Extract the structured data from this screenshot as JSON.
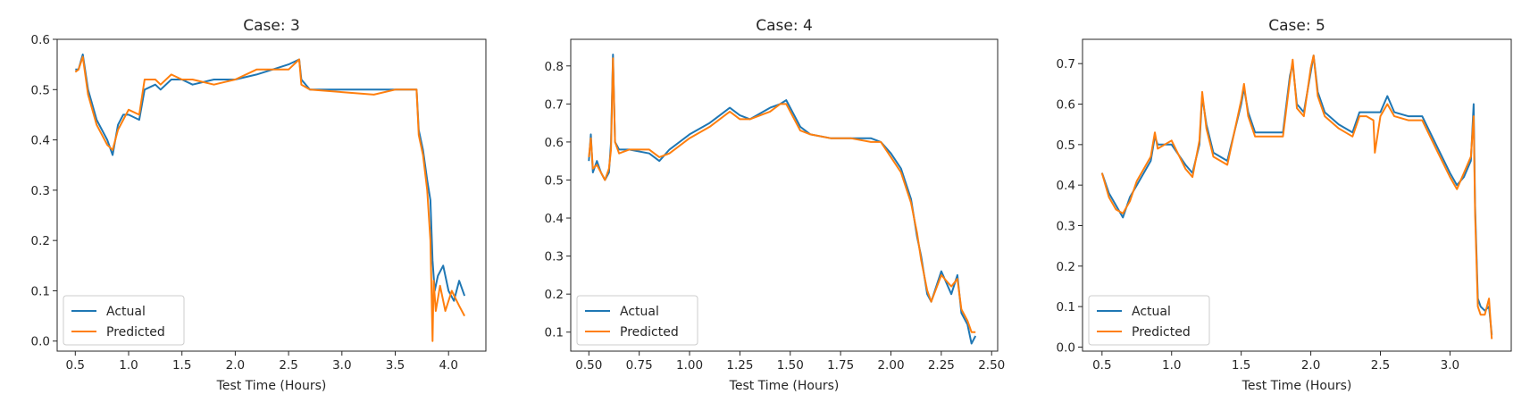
{
  "colors": {
    "actual": "#1f77b4",
    "predicted": "#ff7f0e",
    "axis": "#262626"
  },
  "chart_data": [
    {
      "type": "line",
      "title": "Case: 3",
      "xlabel": "Test Time (Hours)",
      "ylabel": "",
      "xlim": [
        0.33,
        4.35
      ],
      "ylim": [
        -0.02,
        0.6
      ],
      "xticks": [
        0.5,
        1.0,
        1.5,
        2.0,
        2.5,
        3.0,
        3.5,
        4.0
      ],
      "xtick_labels": [
        "0.5",
        "1.0",
        "1.5",
        "2.0",
        "2.5",
        "3.0",
        "3.5",
        "4.0"
      ],
      "yticks": [
        0.0,
        0.1,
        0.2,
        0.3,
        0.4,
        0.5,
        0.6
      ],
      "ytick_labels": [
        "0.0",
        "0.1",
        "0.2",
        "0.3",
        "0.4",
        "0.5",
        "0.6"
      ],
      "legend": {
        "position": "lower-left",
        "entries": [
          "Actual",
          "Predicted"
        ]
      },
      "grid": false,
      "series": [
        {
          "name": "Actual",
          "x": [
            0.5,
            0.53,
            0.57,
            0.62,
            0.7,
            0.8,
            0.85,
            0.9,
            0.95,
            1.0,
            1.1,
            1.15,
            1.25,
            1.3,
            1.4,
            1.5,
            1.6,
            1.8,
            2.0,
            2.2,
            2.35,
            2.5,
            2.6,
            2.62,
            2.7,
            3.0,
            3.5,
            3.7,
            3.72,
            3.76,
            3.8,
            3.83,
            3.85,
            3.87,
            3.9,
            3.95,
            4.0,
            4.05,
            4.1,
            4.15
          ],
          "y": [
            0.54,
            0.54,
            0.57,
            0.5,
            0.44,
            0.4,
            0.37,
            0.43,
            0.45,
            0.45,
            0.44,
            0.5,
            0.51,
            0.5,
            0.52,
            0.52,
            0.51,
            0.52,
            0.52,
            0.53,
            0.54,
            0.55,
            0.56,
            0.52,
            0.5,
            0.5,
            0.5,
            0.5,
            0.42,
            0.38,
            0.32,
            0.28,
            0.16,
            0.1,
            0.13,
            0.15,
            0.1,
            0.08,
            0.12,
            0.09
          ]
        },
        {
          "name": "Predicted",
          "x": [
            0.5,
            0.53,
            0.57,
            0.62,
            0.7,
            0.8,
            0.85,
            0.9,
            0.95,
            1.0,
            1.1,
            1.15,
            1.25,
            1.3,
            1.4,
            1.5,
            1.6,
            1.8,
            2.0,
            2.2,
            2.35,
            2.5,
            2.6,
            2.62,
            2.7,
            3.0,
            3.3,
            3.5,
            3.7,
            3.72,
            3.76,
            3.8,
            3.83,
            3.85,
            3.86,
            3.88,
            3.92,
            3.97,
            4.03,
            4.1,
            4.15
          ],
          "y": [
            0.535,
            0.54,
            0.565,
            0.49,
            0.43,
            0.39,
            0.38,
            0.42,
            0.44,
            0.46,
            0.45,
            0.52,
            0.52,
            0.51,
            0.53,
            0.52,
            0.52,
            0.51,
            0.52,
            0.54,
            0.54,
            0.54,
            0.56,
            0.51,
            0.5,
            0.495,
            0.49,
            0.5,
            0.5,
            0.41,
            0.37,
            0.3,
            0.2,
            0.0,
            0.12,
            0.06,
            0.11,
            0.06,
            0.1,
            0.07,
            0.05
          ]
        }
      ]
    },
    {
      "type": "line",
      "title": "Case: 4",
      "xlabel": "Test Time (Hours)",
      "ylabel": "",
      "xlim": [
        0.41,
        2.53
      ],
      "ylim": [
        0.05,
        0.87
      ],
      "xticks": [
        0.5,
        0.75,
        1.0,
        1.25,
        1.5,
        1.75,
        2.0,
        2.25,
        2.5
      ],
      "xtick_labels": [
        "0.50",
        "0.75",
        "1.00",
        "1.25",
        "1.50",
        "1.75",
        "2.00",
        "2.25",
        "2.50"
      ],
      "yticks": [
        0.1,
        0.2,
        0.3,
        0.4,
        0.5,
        0.6,
        0.7,
        0.8
      ],
      "ytick_labels": [
        "0.1",
        "0.2",
        "0.3",
        "0.4",
        "0.5",
        "0.6",
        "0.7",
        "0.8"
      ],
      "legend": {
        "position": "lower-left",
        "entries": [
          "Actual",
          "Predicted"
        ]
      },
      "grid": false,
      "series": [
        {
          "name": "Actual",
          "x": [
            0.5,
            0.51,
            0.52,
            0.54,
            0.56,
            0.58,
            0.6,
            0.61,
            0.62,
            0.63,
            0.65,
            0.7,
            0.8,
            0.85,
            0.9,
            1.0,
            1.1,
            1.2,
            1.25,
            1.3,
            1.4,
            1.45,
            1.48,
            1.55,
            1.6,
            1.7,
            1.8,
            1.9,
            1.95,
            2.0,
            2.05,
            2.1,
            2.13,
            2.15,
            2.18,
            2.2,
            2.25,
            2.3,
            2.33,
            2.35,
            2.38,
            2.4,
            2.42
          ],
          "y": [
            0.55,
            0.62,
            0.52,
            0.55,
            0.52,
            0.5,
            0.52,
            0.6,
            0.83,
            0.6,
            0.58,
            0.58,
            0.57,
            0.55,
            0.58,
            0.62,
            0.65,
            0.69,
            0.67,
            0.66,
            0.69,
            0.7,
            0.71,
            0.64,
            0.62,
            0.61,
            0.61,
            0.61,
            0.6,
            0.57,
            0.53,
            0.45,
            0.35,
            0.3,
            0.2,
            0.18,
            0.26,
            0.2,
            0.25,
            0.15,
            0.12,
            0.07,
            0.09
          ]
        },
        {
          "name": "Predicted",
          "x": [
            0.5,
            0.51,
            0.52,
            0.54,
            0.56,
            0.58,
            0.6,
            0.61,
            0.62,
            0.63,
            0.65,
            0.7,
            0.8,
            0.85,
            0.9,
            1.0,
            1.1,
            1.2,
            1.25,
            1.3,
            1.4,
            1.45,
            1.48,
            1.55,
            1.6,
            1.7,
            1.8,
            1.9,
            1.95,
            2.0,
            2.05,
            2.1,
            2.13,
            2.15,
            2.18,
            2.2,
            2.25,
            2.3,
            2.33,
            2.35,
            2.38,
            2.4,
            2.42
          ],
          "y": [
            0.56,
            0.61,
            0.53,
            0.54,
            0.52,
            0.5,
            0.53,
            0.58,
            0.82,
            0.6,
            0.57,
            0.58,
            0.58,
            0.56,
            0.57,
            0.61,
            0.64,
            0.68,
            0.66,
            0.66,
            0.68,
            0.7,
            0.7,
            0.63,
            0.62,
            0.61,
            0.61,
            0.6,
            0.6,
            0.56,
            0.52,
            0.44,
            0.36,
            0.29,
            0.21,
            0.18,
            0.25,
            0.22,
            0.24,
            0.16,
            0.13,
            0.1,
            0.1
          ]
        }
      ]
    },
    {
      "type": "line",
      "title": "Case: 5",
      "xlabel": "Test Time (Hours)",
      "ylabel": "",
      "xlim": [
        0.36,
        3.44
      ],
      "ylim": [
        -0.01,
        0.76
      ],
      "xticks": [
        0.5,
        1.0,
        1.5,
        2.0,
        2.5,
        3.0
      ],
      "xtick_labels": [
        "0.5",
        "1.0",
        "1.5",
        "2.0",
        "2.5",
        "3.0"
      ],
      "yticks": [
        0.0,
        0.1,
        0.2,
        0.3,
        0.4,
        0.5,
        0.6,
        0.7
      ],
      "ytick_labels": [
        "0.0",
        "0.1",
        "0.2",
        "0.3",
        "0.4",
        "0.5",
        "0.6",
        "0.7"
      ],
      "legend": {
        "position": "lower-left",
        "entries": [
          "Actual",
          "Predicted"
        ]
      },
      "grid": false,
      "series": [
        {
          "name": "Actual",
          "x": [
            0.5,
            0.55,
            0.6,
            0.65,
            0.7,
            0.75,
            0.8,
            0.85,
            0.88,
            0.9,
            1.0,
            1.1,
            1.15,
            1.2,
            1.22,
            1.25,
            1.3,
            1.4,
            1.5,
            1.52,
            1.55,
            1.6,
            1.7,
            1.8,
            1.85,
            1.87,
            1.9,
            1.95,
            2.0,
            2.02,
            2.05,
            2.1,
            2.2,
            2.3,
            2.35,
            2.4,
            2.5,
            2.55,
            2.6,
            2.7,
            2.8,
            2.9,
            3.0,
            3.05,
            3.1,
            3.15,
            3.17,
            3.18,
            3.2,
            3.22,
            3.25,
            3.28,
            3.3
          ],
          "y": [
            0.43,
            0.38,
            0.35,
            0.32,
            0.37,
            0.4,
            0.43,
            0.46,
            0.52,
            0.5,
            0.5,
            0.45,
            0.43,
            0.5,
            0.62,
            0.55,
            0.48,
            0.46,
            0.6,
            0.64,
            0.58,
            0.53,
            0.53,
            0.53,
            0.67,
            0.7,
            0.6,
            0.58,
            0.68,
            0.72,
            0.63,
            0.58,
            0.55,
            0.53,
            0.58,
            0.58,
            0.58,
            0.62,
            0.58,
            0.57,
            0.57,
            0.5,
            0.43,
            0.4,
            0.42,
            0.46,
            0.6,
            0.35,
            0.12,
            0.1,
            0.09,
            0.1,
            0.03
          ]
        },
        {
          "name": "Predicted",
          "x": [
            0.5,
            0.55,
            0.6,
            0.65,
            0.7,
            0.75,
            0.8,
            0.85,
            0.88,
            0.9,
            1.0,
            1.1,
            1.15,
            1.2,
            1.22,
            1.25,
            1.3,
            1.4,
            1.5,
            1.52,
            1.55,
            1.6,
            1.7,
            1.8,
            1.85,
            1.87,
            1.9,
            1.95,
            2.0,
            2.02,
            2.05,
            2.1,
            2.2,
            2.3,
            2.35,
            2.4,
            2.45,
            2.46,
            2.5,
            2.55,
            2.6,
            2.7,
            2.8,
            2.9,
            3.0,
            3.05,
            3.1,
            3.15,
            3.17,
            3.18,
            3.2,
            3.22,
            3.25,
            3.28,
            3.3
          ],
          "y": [
            0.43,
            0.37,
            0.34,
            0.33,
            0.36,
            0.41,
            0.44,
            0.47,
            0.53,
            0.49,
            0.51,
            0.44,
            0.42,
            0.51,
            0.63,
            0.54,
            0.47,
            0.45,
            0.61,
            0.65,
            0.57,
            0.52,
            0.52,
            0.52,
            0.66,
            0.71,
            0.59,
            0.57,
            0.69,
            0.72,
            0.62,
            0.57,
            0.54,
            0.52,
            0.57,
            0.57,
            0.56,
            0.48,
            0.57,
            0.6,
            0.57,
            0.56,
            0.56,
            0.49,
            0.42,
            0.39,
            0.43,
            0.47,
            0.57,
            0.33,
            0.1,
            0.08,
            0.08,
            0.12,
            0.02
          ]
        }
      ]
    }
  ]
}
